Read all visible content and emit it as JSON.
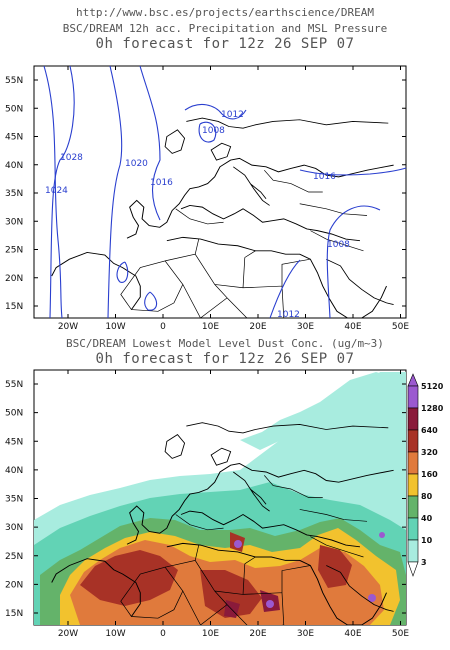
{
  "header": {
    "url": "http://www.bsc.es/projects/earthscience/DREAM"
  },
  "panel_top": {
    "title": "BSC/DREAM 12h acc. Precipitation and MSL Pressure",
    "subtitle": "0h forecast for 12z 26 SEP 07",
    "isobar_labels": [
      "1012",
      "1008",
      "1028",
      "1020",
      "1016",
      "1024",
      "1016",
      "1008",
      "1012"
    ],
    "line_color": "#2a3fcf"
  },
  "panel_bottom": {
    "title": "BSC/DREAM Lowest Model Level Dust Conc. (ug/m~3)",
    "subtitle": "0h forecast for 12z 26 SEP 07",
    "legend": [
      {
        "value": "5120",
        "color": "#9b59d0"
      },
      {
        "value": "1280",
        "color": "#8a1a3a"
      },
      {
        "value": "640",
        "color": "#a83226"
      },
      {
        "value": "320",
        "color": "#e07a3c"
      },
      {
        "value": "160",
        "color": "#f2c22e"
      },
      {
        "value": "80",
        "color": "#64b36a"
      },
      {
        "value": "40",
        "color": "#62d3b5"
      },
      {
        "value": "10",
        "color": "#a8ecdf"
      },
      {
        "value": "3",
        "color": "#ffffff"
      }
    ]
  },
  "axes": {
    "lat_labels": [
      "55N",
      "50N",
      "45N",
      "40N",
      "35N",
      "30N",
      "25N",
      "20N",
      "15N"
    ],
    "lon_labels": [
      "20W",
      "10W",
      "0",
      "10E",
      "20E",
      "30E",
      "40E",
      "50E"
    ]
  }
}
